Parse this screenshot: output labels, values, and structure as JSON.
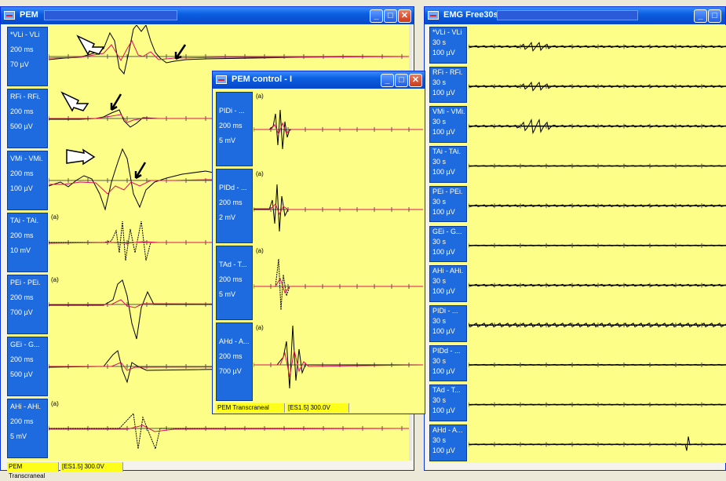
{
  "windows": {
    "pem": {
      "title": "PEM",
      "status_left": "PEM Transcraneal",
      "status_right": "[ES1.5] 300.0V",
      "channels": [
        {
          "name": "*VLi - VLi",
          "time": "200 ms",
          "scale": "70 µV",
          "tag": ""
        },
        {
          "name": "RFi - RFi.",
          "time": "200 ms",
          "scale": "500 µV",
          "tag": ""
        },
        {
          "name": "VMi - VMi.",
          "time": "200 ms",
          "scale": "100 µV",
          "tag": ""
        },
        {
          "name": "TAi - TAi.",
          "time": "200 ms",
          "scale": "10 mV",
          "tag": "(a)"
        },
        {
          "name": "PEi - PEi.",
          "time": "200 ms",
          "scale": "700 µV",
          "tag": "(a)"
        },
        {
          "name": "GEi - G...",
          "time": "200 ms",
          "scale": "500 µV",
          "tag": ""
        },
        {
          "name": "AHi - AHi.",
          "time": "200 ms",
          "scale": "5 mV",
          "tag": "(a)"
        }
      ]
    },
    "control": {
      "title": "PEM control - I",
      "status_left": "PEM Transcraneal",
      "status_right": "[ES1.5] 300.0V",
      "channels": [
        {
          "name": "PIDi - ...",
          "time": "200 ms",
          "scale": "5 mV",
          "tag": "(a)"
        },
        {
          "name": "PIDd - ...",
          "time": "200 ms",
          "scale": "2 mV",
          "tag": "(a)"
        },
        {
          "name": "TAd - T...",
          "time": "200 ms",
          "scale": "5 mV",
          "tag": "(a)"
        },
        {
          "name": "AHd - A...",
          "time": "200 ms",
          "scale": "700 µV",
          "tag": "(a)"
        }
      ]
    },
    "emg": {
      "title": "EMG Free30s",
      "channels": [
        {
          "name": "*VLi - VLi",
          "time": "30 s",
          "scale": "100 µV"
        },
        {
          "name": "RFi - RFi.",
          "time": "30 s",
          "scale": "100 µV"
        },
        {
          "name": "VMi - VMi.",
          "time": "30 s",
          "scale": "100 µV"
        },
        {
          "name": "TAi - TAi.",
          "time": "30 s",
          "scale": "100 µV"
        },
        {
          "name": "PEi - PEi.",
          "time": "30 s",
          "scale": "100 µV"
        },
        {
          "name": "GEi - G...",
          "time": "30 s",
          "scale": "100 µV"
        },
        {
          "name": "AHi - AHi.",
          "time": "30 s",
          "scale": "100 µV"
        },
        {
          "name": "PIDi - ...",
          "time": "30 s",
          "scale": "100 µV"
        },
        {
          "name": "PIDd - ...",
          "time": "30 s",
          "scale": "100 µV"
        },
        {
          "name": "TAd - T...",
          "time": "30 s",
          "scale": "100 µV"
        },
        {
          "name": "AHd - A...",
          "time": "30 s",
          "scale": "100 µV"
        }
      ]
    }
  },
  "colors": {
    "trace_primary": "#000000",
    "trace_secondary": "#e0115f",
    "panel_bg": "#fdfe88",
    "label_bg": "#1e6bdf"
  }
}
